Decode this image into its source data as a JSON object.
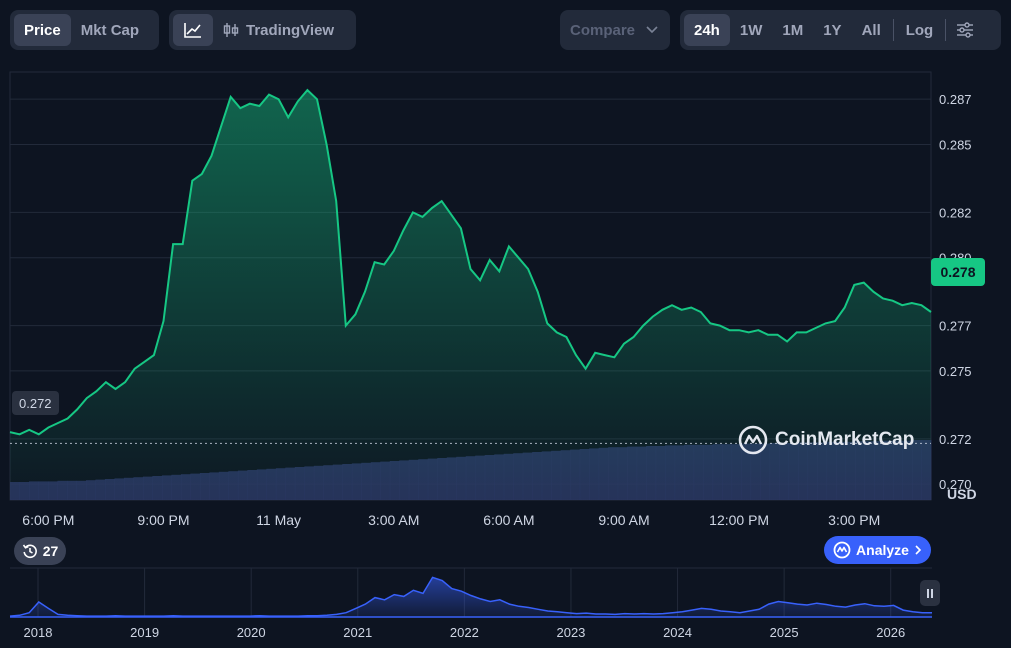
{
  "toolbar": {
    "metric_tabs": [
      {
        "label": "Price",
        "active": true
      },
      {
        "label": "Mkt Cap",
        "active": false
      }
    ],
    "tradingview_label": "TradingView",
    "compare_label": "Compare",
    "ranges": [
      {
        "label": "24h",
        "active": true
      },
      {
        "label": "1W",
        "active": false
      },
      {
        "label": "1M",
        "active": false
      },
      {
        "label": "1Y",
        "active": false
      },
      {
        "label": "All",
        "active": false
      }
    ],
    "log_label": "Log"
  },
  "chart_data": {
    "type": "area",
    "series": [
      {
        "x": [
          0,
          0.25,
          0.5,
          0.75,
          1,
          1.25,
          1.5,
          1.75,
          2,
          2.25,
          2.5,
          2.75,
          3,
          3.25,
          3.5,
          3.75,
          4,
          4.25,
          4.5,
          4.75,
          5,
          5.25,
          5.5,
          5.75,
          6,
          6.25,
          6.5,
          6.75,
          7,
          7.25,
          7.5,
          7.75,
          8,
          8.25,
          8.5,
          8.75,
          9,
          9.25,
          9.5,
          9.75,
          10,
          10.25,
          10.5,
          10.75,
          11,
          11.25,
          11.5,
          11.75,
          12,
          12.25,
          12.5,
          12.75,
          13,
          13.25,
          13.5,
          13.75,
          14,
          14.25,
          14.5,
          14.75,
          15,
          15.25,
          15.5,
          15.75,
          16,
          16.25,
          16.5,
          16.75,
          17,
          17.25,
          17.5,
          17.75,
          18,
          18.25,
          18.5,
          18.75,
          19,
          19.25,
          19.5,
          19.75,
          20,
          20.25,
          20.5,
          20.75,
          21,
          21.25,
          21.5,
          21.75,
          22,
          22.25,
          22.5,
          22.75,
          23,
          23.25,
          23.5,
          23.75,
          24
        ],
        "values": [
          0.2723,
          0.2722,
          0.2724,
          0.2722,
          0.2725,
          0.2727,
          0.2729,
          0.2733,
          0.2738,
          0.2741,
          0.2745,
          0.2742,
          0.2745,
          0.2751,
          0.2754,
          0.2757,
          0.2772,
          0.2806,
          0.2806,
          0.2834,
          0.2837,
          0.2845,
          0.2858,
          0.2871,
          0.2866,
          0.2868,
          0.2867,
          0.2872,
          0.287,
          0.2862,
          0.2869,
          0.2874,
          0.287,
          0.285,
          0.2825,
          0.277,
          0.2775,
          0.2785,
          0.2798,
          0.2797,
          0.2803,
          0.2812,
          0.282,
          0.2818,
          0.2822,
          0.2825,
          0.2819,
          0.2813,
          0.2795,
          0.279,
          0.2799,
          0.2794,
          0.2805,
          0.28,
          0.2795,
          0.2785,
          0.2771,
          0.2767,
          0.2765,
          0.2757,
          0.2751,
          0.2758,
          0.2757,
          0.2756,
          0.2762,
          0.2765,
          0.277,
          0.2774,
          0.2777,
          0.2779,
          0.2777,
          0.2778,
          0.2776,
          0.2771,
          0.277,
          0.2768,
          0.2768,
          0.2767,
          0.2768,
          0.2766,
          0.2766,
          0.2763,
          0.2767,
          0.2767,
          0.2769,
          0.2771,
          0.2772,
          0.2778,
          0.2788,
          0.2789,
          0.2785,
          0.2782,
          0.2781,
          0.2779,
          0.278,
          0.2779,
          0.2776
        ]
      }
    ],
    "volume": [
      0.3,
      0.3,
      0.31,
      0.31,
      0.31,
      0.32,
      0.32,
      0.32,
      0.33,
      0.34,
      0.35,
      0.36,
      0.37,
      0.38,
      0.39,
      0.4,
      0.41,
      0.42,
      0.43,
      0.44,
      0.45,
      0.46,
      0.47,
      0.48,
      0.49,
      0.5,
      0.51,
      0.52,
      0.53,
      0.54,
      0.55,
      0.56,
      0.57,
      0.58,
      0.59,
      0.6,
      0.61,
      0.62,
      0.63,
      0.64,
      0.65,
      0.66,
      0.67,
      0.68,
      0.69,
      0.7,
      0.71,
      0.72,
      0.73,
      0.74,
      0.75,
      0.76,
      0.77,
      0.78,
      0.79,
      0.8,
      0.81,
      0.82,
      0.83,
      0.84,
      0.85,
      0.86,
      0.87,
      0.88,
      0.88,
      0.89,
      0.89,
      0.9,
      0.9,
      0.91,
      0.91,
      0.92,
      0.92,
      0.92,
      0.93,
      0.93,
      0.93,
      0.94,
      0.94,
      0.94,
      0.95,
      0.95,
      0.95,
      0.96,
      0.96,
      0.96,
      0.97,
      0.97,
      0.97,
      0.98,
      0.98,
      0.98,
      0.99,
      0.99,
      0.99,
      1.0,
      1.0
    ],
    "ylim": [
      0.2693,
      0.2882
    ],
    "y_ticks": [
      0.287,
      0.285,
      0.282,
      0.28,
      0.277,
      0.275,
      0.272,
      0.27
    ],
    "x_ticks": [
      {
        "x": 1,
        "label": "6:00 PM"
      },
      {
        "x": 4,
        "label": "9:00 PM"
      },
      {
        "x": 7,
        "label": "11 May"
      },
      {
        "x": 10,
        "label": "3:00 AM"
      },
      {
        "x": 13,
        "label": "6:00 AM"
      },
      {
        "x": 16,
        "label": "9:00 AM"
      },
      {
        "x": 19,
        "label": "12:00 PM"
      },
      {
        "x": 22,
        "label": "3:00 PM"
      }
    ],
    "unit_label": "USD",
    "current_price_label": "0.278",
    "current_price": 0.2779,
    "open_price_label": "0.272",
    "open_price": 0.2718,
    "line_color": "#16c784",
    "grid": true
  },
  "navigator": {
    "years": [
      "2018",
      "2019",
      "2020",
      "2021",
      "2022",
      "2023",
      "2024",
      "2025",
      "2026"
    ],
    "values": [
      0.02,
      0.04,
      0.1,
      0.35,
      0.2,
      0.06,
      0.04,
      0.03,
      0.02,
      0.02,
      0.02,
      0.03,
      0.02,
      0.02,
      0.02,
      0.02,
      0.02,
      0.03,
      0.02,
      0.02,
      0.02,
      0.02,
      0.02,
      0.02,
      0.02,
      0.02,
      0.03,
      0.02,
      0.02,
      0.02,
      0.02,
      0.03,
      0.03,
      0.04,
      0.06,
      0.1,
      0.2,
      0.3,
      0.45,
      0.4,
      0.52,
      0.48,
      0.62,
      0.55,
      0.92,
      0.85,
      0.66,
      0.6,
      0.5,
      0.42,
      0.36,
      0.4,
      0.3,
      0.25,
      0.22,
      0.18,
      0.14,
      0.12,
      0.1,
      0.08,
      0.09,
      0.07,
      0.07,
      0.06,
      0.08,
      0.07,
      0.08,
      0.07,
      0.08,
      0.1,
      0.12,
      0.16,
      0.2,
      0.18,
      0.14,
      0.12,
      0.1,
      0.14,
      0.18,
      0.3,
      0.36,
      0.33,
      0.3,
      0.28,
      0.32,
      0.29,
      0.25,
      0.23,
      0.28,
      0.31,
      0.26,
      0.25,
      0.27,
      0.16,
      0.12,
      0.1,
      0.1
    ],
    "line_color": "#3861fb"
  },
  "history_badge": {
    "icon": "history-icon",
    "count": "27"
  },
  "analyze_label": "Analyze",
  "watermark": "CoinMarketCap"
}
